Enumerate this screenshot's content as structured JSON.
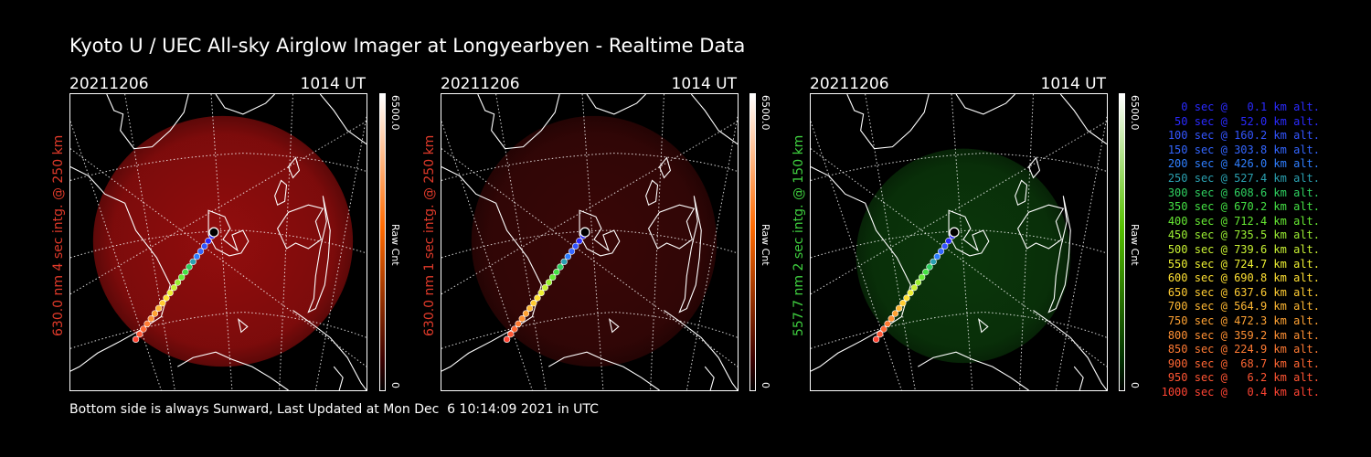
{
  "title": "Kyoto U / UEC All-sky Airglow Imager at Longyearbyen - Realtime Data",
  "panels": [
    {
      "date": "20211206",
      "time": "1014 UT",
      "side_label": "630.0 nm 4 sec intg. @ 250 km",
      "label_color": "#e03a2a",
      "cbar_max": "6500.0",
      "cbar_min": "0",
      "cbar_unit": "Raw Cnt",
      "glow_color": "#9a0e0e",
      "glow_opacity": 0.95,
      "cbar_top": "#ffffff",
      "cbar_mid": "#ff6a00",
      "cbar_bottom": "#3a0000"
    },
    {
      "date": "20211206",
      "time": "1014 UT",
      "side_label": "630.0 nm 1 sec intg. @ 250 km",
      "label_color": "#e03a2a",
      "cbar_max": "6500.0",
      "cbar_min": "0",
      "cbar_unit": "Raw Cnt",
      "glow_color": "#3c0707",
      "glow_opacity": 0.95,
      "cbar_top": "#ffffff",
      "cbar_mid": "#ff6a00",
      "cbar_bottom": "#3a0000"
    },
    {
      "date": "20211206",
      "time": "1014 UT",
      "side_label": "557.7 nm 2 sec intg. @ 150 km",
      "label_color": "#3fcf3f",
      "cbar_max": "6500.0",
      "cbar_min": "0",
      "cbar_unit": "Raw Cnt",
      "glow_color": "#0b3a0b",
      "glow_opacity": 0.95,
      "cbar_top": "#ffffff",
      "cbar_mid": "#55c000",
      "cbar_bottom": "#003000"
    }
  ],
  "legend": [
    {
      "text": "0 sec @   0.1 km alt.",
      "color": "#2a2aff"
    },
    {
      "text": "50 sec @  52.0 km alt.",
      "color": "#2a2aff"
    },
    {
      "text": "100 sec @ 160.2 km alt.",
      "color": "#3355ff"
    },
    {
      "text": "150 sec @ 303.8 km alt.",
      "color": "#3366ff"
    },
    {
      "text": "200 sec @ 426.0 km alt.",
      "color": "#2f7fff"
    },
    {
      "text": "250 sec @ 527.4 km alt.",
      "color": "#2aa0b0"
    },
    {
      "text": "300 sec @ 608.6 km alt.",
      "color": "#2fd060"
    },
    {
      "text": "350 sec @ 670.2 km alt.",
      "color": "#44e044"
    },
    {
      "text": "400 sec @ 712.4 km alt.",
      "color": "#66e833"
    },
    {
      "text": "450 sec @ 735.5 km alt.",
      "color": "#9aee33"
    },
    {
      "text": "500 sec @ 739.6 km alt.",
      "color": "#c8f033"
    },
    {
      "text": "550 sec @ 724.7 km alt.",
      "color": "#eef033"
    },
    {
      "text": "600 sec @ 690.8 km alt.",
      "color": "#ffe033"
    },
    {
      "text": "650 sec @ 637.6 km alt.",
      "color": "#ffcc33"
    },
    {
      "text": "700 sec @ 564.9 km alt.",
      "color": "#ffb833"
    },
    {
      "text": "750 sec @ 472.3 km alt.",
      "color": "#ffa233"
    },
    {
      "text": "800 sec @ 359.2 km alt.",
      "color": "#ff9033"
    },
    {
      "text": "850 sec @ 224.9 km alt.",
      "color": "#ff7a33"
    },
    {
      "text": "900 sec @  68.7 km alt.",
      "color": "#ff6633"
    },
    {
      "text": "950 sec @   6.2 km alt.",
      "color": "#ff5533"
    },
    {
      "text": "1000 sec @   0.4 km alt.",
      "color": "#ff4433"
    }
  ],
  "footer": "Bottom side is always Sunward, Last Updated at Mon Dec  6 10:14:09 2021 in UTC"
}
